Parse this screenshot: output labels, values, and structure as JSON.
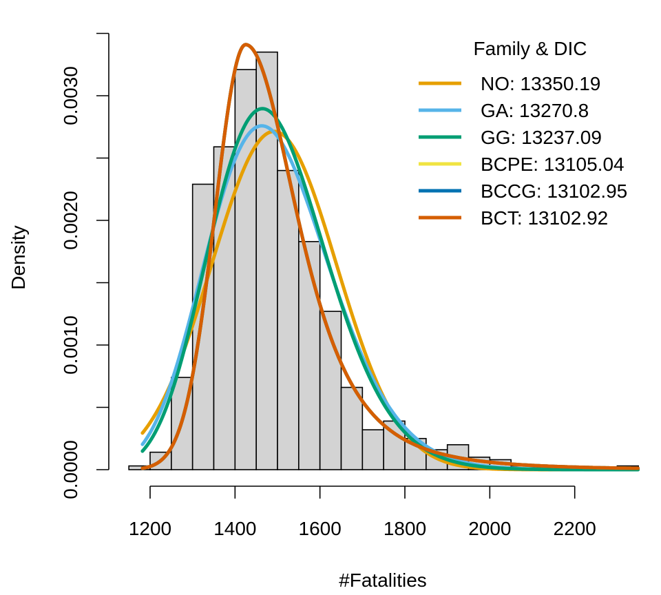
{
  "chart_data": {
    "type": "histogram",
    "title": "",
    "xlabel": "#Fatalities",
    "ylabel": "Density",
    "xlim": [
      1150,
      2350
    ],
    "ylim": [
      0,
      0.0035
    ],
    "x_ticks": [
      1200,
      1400,
      1600,
      1800,
      2000,
      2200
    ],
    "x_tick_labels": [
      "1200",
      "1400",
      "1600",
      "1800",
      "2000",
      "2200"
    ],
    "y_ticks": [
      0,
      0.0005,
      0.001,
      0.0015,
      0.002,
      0.0025,
      0.003,
      0.0035
    ],
    "y_tick_labels": [
      "0.0000",
      "",
      "0.0010",
      "",
      "0.0020",
      "",
      "0.0030",
      ""
    ],
    "grid": false,
    "histogram": {
      "bin_edges": [
        1150,
        1200,
        1250,
        1300,
        1350,
        1400,
        1450,
        1500,
        1550,
        1600,
        1650,
        1700,
        1750,
        1800,
        1850,
        1900,
        1950,
        2000,
        2050,
        2100,
        2150,
        2200,
        2250,
        2300,
        2350
      ],
      "density": [
        3e-05,
        0.00014,
        0.00074,
        0.00229,
        0.00259,
        0.00321,
        0.00335,
        0.0024,
        0.00183,
        0.00127,
        0.00066,
        0.00032,
        0.00039,
        0.00025,
        0.00016,
        0.0002,
        0.0001,
        8e-05,
        3e-05,
        2e-05,
        1e-05,
        1e-05,
        1e-05,
        3e-05
      ],
      "fill": "#d3d3d3",
      "stroke": "#000000"
    },
    "legend": {
      "title": "Family & DIC",
      "position": "top-right"
    },
    "series": [
      {
        "name": "NO: 13350.19",
        "color": "#E69F00",
        "dist": "normal",
        "mean": 1492,
        "sd": 147,
        "xrange": [
          1182,
          2350
        ]
      },
      {
        "name": "GA: 13270.8",
        "color": "#56B4E9",
        "dist": "gamma",
        "mode": 1468,
        "mean": 1492,
        "sd": 147,
        "xrange": [
          1182,
          2350
        ]
      },
      {
        "name": "GG: 13237.09",
        "color": "#009E73",
        "dist": "gamma",
        "mode": 1470,
        "mean": 1492,
        "sd": 140,
        "xrange": [
          1182,
          2350
        ]
      },
      {
        "name": "BCPE: 13105.04",
        "color": "#F0E442",
        "dist": "skewed",
        "mode": 1425,
        "peak": 0.00341,
        "sd_left": 72,
        "sd_right": 130,
        "xrange": [
          1182,
          2350
        ]
      },
      {
        "name": "BCCG: 13102.95",
        "color": "#0072B2",
        "dist": "skewed",
        "mode": 1425,
        "peak": 0.00341,
        "sd_left": 72,
        "sd_right": 130,
        "xrange": [
          1182,
          2350
        ]
      },
      {
        "name": "BCT: 13102.92",
        "color": "#D55E00",
        "dist": "skewed",
        "mode": 1425,
        "peak": 0.00341,
        "sd_left": 72,
        "sd_right": 130,
        "xrange": [
          1182,
          2350
        ]
      }
    ]
  }
}
